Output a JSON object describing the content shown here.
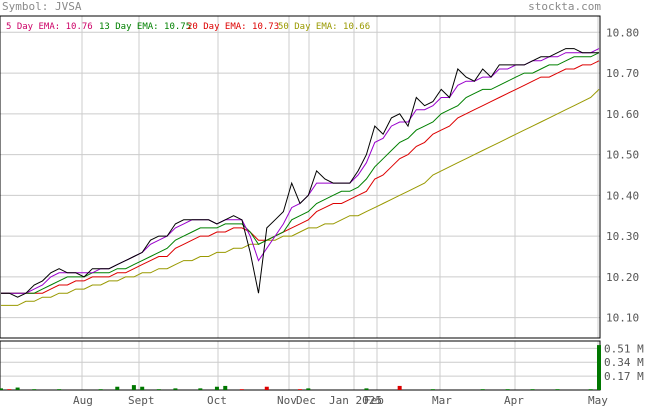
{
  "header": {
    "symbol": "Symbol: JVSA",
    "site": "stockta.com"
  },
  "legend": [
    {
      "label": "5 Day EMA:",
      "value": "10.76",
      "color": "#cc0066"
    },
    {
      "label": "13 Day EMA:",
      "value": "10.75",
      "color": "#008000"
    },
    {
      "label": "20 Day EMA:",
      "value": "10.73",
      "color": "#dd0000"
    },
    {
      "label": "50 Day EMA:",
      "value": "10.66",
      "color": "#999900"
    }
  ],
  "colors": {
    "price": "#000000",
    "ema5": "#9900cc",
    "ema13": "#008000",
    "ema20": "#dd0000",
    "ema50": "#999900",
    "grid": "#cccccc",
    "vol_up": "#007700",
    "vol_down": "#dd0000"
  },
  "chart_data": [
    {
      "type": "line",
      "x_ticks": [
        "Aug",
        "Sept",
        "Oct",
        "Nov",
        "Dec",
        "Jan 2025",
        "Feb",
        "Mar",
        "Apr",
        "May"
      ],
      "ylim": [
        10.05,
        10.84
      ],
      "y_ticks": [
        "10.80",
        "10.70",
        "10.60",
        "10.50",
        "10.40",
        "10.30",
        "10.20",
        "10.10"
      ],
      "series": [
        {
          "name": "Price",
          "key": "price",
          "values": [
            10.16,
            10.16,
            10.15,
            10.16,
            10.18,
            10.19,
            10.21,
            10.22,
            10.21,
            10.21,
            10.2,
            10.22,
            10.22,
            10.22,
            10.23,
            10.24,
            10.25,
            10.26,
            10.29,
            10.3,
            10.3,
            10.33,
            10.34,
            10.34,
            10.34,
            10.34,
            10.33,
            10.34,
            10.35,
            10.34,
            10.26,
            10.16,
            10.32,
            10.34,
            10.36,
            10.43,
            10.38,
            10.4,
            10.46,
            10.44,
            10.43,
            10.43,
            10.43,
            10.46,
            10.5,
            10.57,
            10.55,
            10.59,
            10.6,
            10.57,
            10.64,
            10.62,
            10.63,
            10.66,
            10.64,
            10.71,
            10.69,
            10.68,
            10.71,
            10.69,
            10.72,
            10.72,
            10.72,
            10.72,
            10.73,
            10.74,
            10.74,
            10.75,
            10.76,
            10.76,
            10.75,
            10.75,
            10.75
          ]
        },
        {
          "name": "5 Day EMA",
          "key": "ema5",
          "values": [
            10.16,
            10.16,
            10.16,
            10.16,
            10.17,
            10.18,
            10.2,
            10.21,
            10.21,
            10.21,
            10.21,
            10.21,
            10.22,
            10.22,
            10.23,
            10.24,
            10.25,
            10.26,
            10.28,
            10.29,
            10.3,
            10.32,
            10.33,
            10.34,
            10.34,
            10.34,
            10.33,
            10.34,
            10.34,
            10.34,
            10.3,
            10.24,
            10.27,
            10.3,
            10.33,
            10.37,
            10.38,
            10.4,
            10.43,
            10.43,
            10.43,
            10.43,
            10.43,
            10.45,
            10.48,
            10.53,
            10.54,
            10.57,
            10.58,
            10.58,
            10.61,
            10.61,
            10.62,
            10.64,
            10.64,
            10.67,
            10.68,
            10.68,
            10.69,
            10.69,
            10.71,
            10.71,
            10.72,
            10.72,
            10.73,
            10.73,
            10.74,
            10.74,
            10.75,
            10.75,
            10.75,
            10.75,
            10.76
          ]
        },
        {
          "name": "13 Day EMA",
          "key": "ema13",
          "values": [
            10.16,
            10.16,
            10.16,
            10.16,
            10.16,
            10.17,
            10.18,
            10.19,
            10.2,
            10.2,
            10.2,
            10.21,
            10.21,
            10.21,
            10.22,
            10.22,
            10.23,
            10.24,
            10.25,
            10.26,
            10.27,
            10.29,
            10.3,
            10.31,
            10.32,
            10.32,
            10.32,
            10.33,
            10.33,
            10.33,
            10.31,
            10.28,
            10.29,
            10.3,
            10.31,
            10.34,
            10.35,
            10.36,
            10.38,
            10.39,
            10.4,
            10.41,
            10.41,
            10.42,
            10.44,
            10.47,
            10.49,
            10.51,
            10.53,
            10.54,
            10.56,
            10.57,
            10.58,
            10.6,
            10.61,
            10.62,
            10.64,
            10.65,
            10.66,
            10.66,
            10.67,
            10.68,
            10.69,
            10.7,
            10.7,
            10.71,
            10.72,
            10.72,
            10.73,
            10.74,
            10.74,
            10.74,
            10.75
          ]
        },
        {
          "name": "20 Day EMA",
          "key": "ema20",
          "values": [
            10.16,
            10.16,
            10.16,
            10.16,
            10.16,
            10.16,
            10.17,
            10.18,
            10.18,
            10.19,
            10.19,
            10.2,
            10.2,
            10.2,
            10.21,
            10.21,
            10.22,
            10.23,
            10.24,
            10.25,
            10.25,
            10.27,
            10.28,
            10.29,
            10.3,
            10.3,
            10.31,
            10.31,
            10.32,
            10.32,
            10.31,
            10.29,
            10.29,
            10.3,
            10.31,
            10.32,
            10.33,
            10.34,
            10.36,
            10.37,
            10.38,
            10.38,
            10.39,
            10.4,
            10.41,
            10.44,
            10.45,
            10.47,
            10.49,
            10.5,
            10.52,
            10.53,
            10.55,
            10.56,
            10.57,
            10.59,
            10.6,
            10.61,
            10.62,
            10.63,
            10.64,
            10.65,
            10.66,
            10.67,
            10.68,
            10.69,
            10.69,
            10.7,
            10.71,
            10.71,
            10.72,
            10.72,
            10.73
          ]
        },
        {
          "name": "50 Day EMA",
          "key": "ema50",
          "values": [
            10.13,
            10.13,
            10.13,
            10.14,
            10.14,
            10.15,
            10.15,
            10.16,
            10.16,
            10.17,
            10.17,
            10.18,
            10.18,
            10.19,
            10.19,
            10.2,
            10.2,
            10.21,
            10.21,
            10.22,
            10.22,
            10.23,
            10.24,
            10.24,
            10.25,
            10.25,
            10.26,
            10.26,
            10.27,
            10.27,
            10.28,
            10.28,
            10.29,
            10.29,
            10.3,
            10.3,
            10.31,
            10.32,
            10.32,
            10.33,
            10.33,
            10.34,
            10.35,
            10.35,
            10.36,
            10.37,
            10.38,
            10.39,
            10.4,
            10.41,
            10.42,
            10.43,
            10.45,
            10.46,
            10.47,
            10.48,
            10.49,
            10.5,
            10.51,
            10.52,
            10.53,
            10.54,
            10.55,
            10.56,
            10.57,
            10.58,
            10.59,
            10.6,
            10.61,
            10.62,
            10.63,
            10.64,
            10.66
          ]
        }
      ]
    },
    {
      "type": "bar",
      "y_ticks": [
        "0.51 M",
        "0.34 M",
        "0.17 M"
      ],
      "ylim": [
        0,
        0.6
      ],
      "values": [
        0.02,
        0.01,
        0.03,
        0.0,
        0.01,
        0.0,
        0.0,
        0.01,
        0.0,
        0.0,
        0.0,
        0.0,
        0.01,
        0.0,
        0.04,
        0.0,
        0.06,
        0.04,
        0.0,
        0.01,
        0.0,
        0.02,
        0.0,
        0.0,
        0.02,
        0.0,
        0.04,
        0.05,
        0.0,
        0.01,
        0.0,
        0.0,
        0.04,
        0.0,
        0.0,
        0.0,
        0.01,
        0.02,
        0.0,
        0.0,
        0.0,
        0.0,
        0.0,
        0.0,
        0.02,
        0.0,
        0.0,
        0.0,
        0.05,
        0.0,
        0.0,
        0.0,
        0.01,
        0.0,
        0.0,
        0.0,
        0.0,
        0.0,
        0.01,
        0.0,
        0.0,
        0.01,
        0.0,
        0.0,
        0.01,
        0.0,
        0.0,
        0.01,
        0.0,
        0.0,
        0.0,
        0.01,
        0.55
      ],
      "up": [
        1,
        0,
        1,
        1,
        1,
        1,
        0,
        1,
        1,
        1,
        0,
        1,
        1,
        1,
        1,
        1,
        1,
        1,
        1,
        1,
        0,
        1,
        1,
        1,
        1,
        0,
        1,
        1,
        1,
        0,
        0,
        0,
        0,
        1,
        1,
        1,
        0,
        1,
        1,
        0,
        0,
        1,
        1,
        1,
        1,
        1,
        0,
        1,
        0,
        0,
        1,
        0,
        1,
        1,
        0,
        1,
        0,
        0,
        1,
        0,
        1,
        1,
        1,
        1,
        1,
        1,
        1,
        1,
        1,
        1,
        0,
        1,
        1
      ]
    }
  ]
}
